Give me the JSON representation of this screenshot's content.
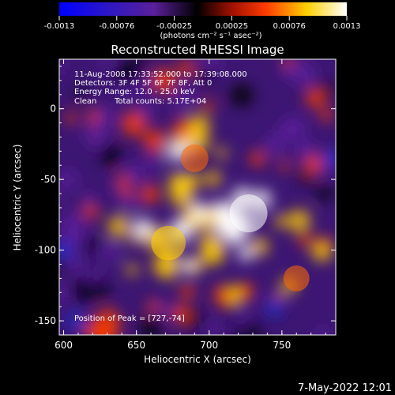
{
  "chart_data": {
    "type": "heatmap",
    "title": "Reconstructed RHESSI Image",
    "xlabel": "Heliocentric X (arcsec)",
    "ylabel": "Heliocentric Y (arcsec)",
    "xlim": [
      597,
      787
    ],
    "ylim": [
      -160,
      35
    ],
    "x_ticks": [
      600,
      650,
      700,
      750
    ],
    "y_ticks": [
      0,
      -50,
      -100,
      -150
    ],
    "colorbar": {
      "range": [
        -0.0013,
        0.0013
      ],
      "ticks": [
        "-0.0013",
        "-0.00076",
        "-0.00025",
        "0.00025",
        "0.00076",
        "0.0013"
      ],
      "units": "(photons cm⁻² s⁻¹ asec⁻²)",
      "colors": [
        "#0000ff",
        "#5a1f9a",
        "#000000",
        "#a01000",
        "#ff3c00",
        "#ffd000",
        "#ffffff"
      ]
    },
    "annotations": {
      "time": "11-Aug-2008 17:33:52.000 to 17:39:08.000",
      "detectors": "Detectors: 3F 4F 5F 6F 7F 8F, Att 0",
      "energy": "Energy Range: 12.0 - 25.0 keV",
      "method": "Clean",
      "counts": "Total counts: 5.17E+04",
      "peak": "Position of Peak = [727,-74]"
    },
    "peak": [
      727,
      -74
    ],
    "bright_regions": [
      {
        "x": 672,
        "y": -95,
        "intensity": 0.0011
      },
      {
        "x": 727,
        "y": -74,
        "intensity": 0.0013
      },
      {
        "x": 690,
        "y": -35,
        "intensity": 0.0007
      },
      {
        "x": 760,
        "y": -120,
        "intensity": 0.0006
      }
    ]
  },
  "timestamp": "7-May-2022 12:01"
}
